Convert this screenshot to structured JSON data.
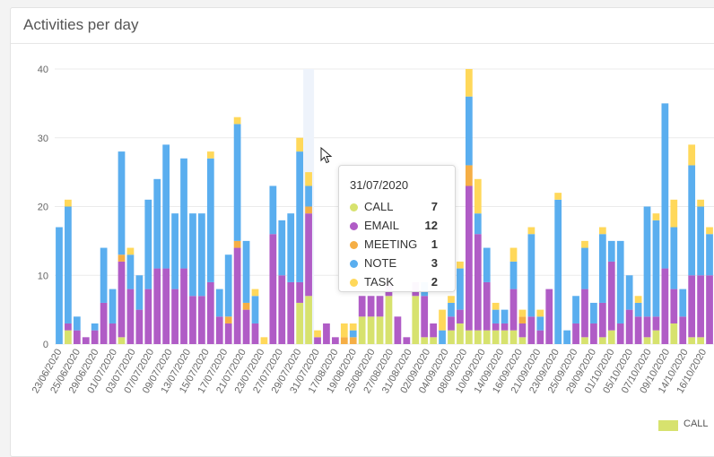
{
  "card": {
    "title": "Activities per day"
  },
  "colors": {
    "CALL": "#d7e26e",
    "EMAIL": "#b05cc6",
    "MEETING": "#f5ae45",
    "NOTE": "#5aaeef",
    "TASK": "#ffd85a",
    "grid": "#ebebeb",
    "axis_text": "#666666"
  },
  "tooltip": {
    "date": "31/07/2020",
    "rows": [
      {
        "name": "CALL",
        "value": "7"
      },
      {
        "name": "EMAIL",
        "value": "12"
      },
      {
        "name": "MEETING",
        "value": "1"
      },
      {
        "name": "NOTE",
        "value": "3"
      },
      {
        "name": "TASK",
        "value": "2"
      }
    ]
  },
  "legend": {
    "label": "CALL"
  },
  "chart_data": {
    "type": "bar",
    "stacked": true,
    "ylim": [
      0,
      40
    ],
    "yticks": [
      0,
      10,
      20,
      30,
      40
    ],
    "grid": true,
    "legend_position": "bottom-right",
    "tick_labels": [
      "23/06/2020",
      "25/06/2020",
      "29/06/2020",
      "01/07/2020",
      "03/07/2020",
      "07/07/2020",
      "09/07/2020",
      "13/07/2020",
      "15/07/2020",
      "17/07/2020",
      "21/07/2020",
      "23/07/2020",
      "27/07/2020",
      "29/07/2020",
      "31/07/2020",
      "17/08/2020",
      "19/08/2020",
      "25/08/2020",
      "27/08/2020",
      "31/08/2020",
      "02/09/2020",
      "04/09/2020",
      "08/09/2020",
      "10/09/2020",
      "14/09/2020",
      "16/09/2020",
      "21/09/2020",
      "23/09/2020",
      "25/09/2020",
      "29/09/2020",
      "01/10/2020",
      "05/10/2020",
      "07/10/2020",
      "09/10/2020",
      "14/10/2020",
      "16/10/2020"
    ],
    "series_names": [
      "CALL",
      "EMAIL",
      "MEETING",
      "NOTE",
      "TASK"
    ],
    "bars": [
      [
        0,
        0,
        0,
        17,
        0
      ],
      [
        2,
        1,
        0,
        17,
        1
      ],
      [
        0,
        2,
        0,
        2,
        0
      ],
      [
        0,
        1,
        0,
        0,
        0
      ],
      [
        0,
        2,
        0,
        1,
        0
      ],
      [
        0,
        6,
        0,
        8,
        0
      ],
      [
        0,
        3,
        0,
        5,
        0
      ],
      [
        1,
        11,
        1,
        15,
        0
      ],
      [
        0,
        8,
        0,
        5,
        1
      ],
      [
        0,
        5,
        0,
        5,
        0
      ],
      [
        0,
        8,
        0,
        13,
        0
      ],
      [
        0,
        11,
        0,
        13,
        0
      ],
      [
        0,
        11,
        0,
        18,
        0
      ],
      [
        0,
        8,
        0,
        11,
        0
      ],
      [
        0,
        11,
        0,
        16,
        0
      ],
      [
        0,
        7,
        0,
        12,
        0
      ],
      [
        0,
        7,
        0,
        12,
        0
      ],
      [
        0,
        9,
        0,
        18,
        1
      ],
      [
        0,
        4,
        0,
        4,
        0
      ],
      [
        0,
        3,
        1,
        9,
        0
      ],
      [
        0,
        14,
        1,
        17,
        1
      ],
      [
        0,
        5,
        1,
        9,
        0
      ],
      [
        0,
        3,
        0,
        4,
        1
      ],
      [
        0,
        0,
        0,
        0,
        1
      ],
      [
        0,
        16,
        0,
        7,
        0
      ],
      [
        0,
        10,
        0,
        8,
        0
      ],
      [
        0,
        9,
        0,
        10,
        0
      ],
      [
        6,
        3,
        0,
        19,
        2
      ],
      [
        7,
        12,
        1,
        3,
        2
      ],
      [
        0,
        1,
        0,
        0,
        1
      ],
      [
        0,
        3,
        0,
        0,
        0
      ],
      [
        0,
        1,
        0,
        0,
        0
      ],
      [
        0,
        0,
        1,
        0,
        2
      ],
      [
        0,
        0,
        1,
        1,
        1
      ],
      [
        4,
        3,
        0,
        0,
        0
      ],
      [
        4,
        3,
        0,
        0,
        0
      ],
      [
        4,
        3,
        0,
        0,
        0
      ],
      [
        7,
        2,
        0,
        0,
        0
      ],
      [
        0,
        4,
        0,
        0,
        0
      ],
      [
        0,
        1,
        0,
        0,
        0
      ],
      [
        7,
        2,
        0,
        0,
        0
      ],
      [
        1,
        6,
        0,
        2,
        0
      ],
      [
        1,
        2,
        0,
        0,
        0
      ],
      [
        0,
        0,
        0,
        2,
        3
      ],
      [
        2,
        2,
        0,
        2,
        1
      ],
      [
        3,
        2,
        0,
        6,
        1
      ],
      [
        2,
        21,
        3,
        10,
        4
      ],
      [
        2,
        14,
        0,
        3,
        5
      ],
      [
        2,
        7,
        0,
        5,
        0
      ],
      [
        2,
        1,
        0,
        2,
        1
      ],
      [
        2,
        1,
        0,
        2,
        0
      ],
      [
        2,
        6,
        0,
        4,
        2
      ],
      [
        1,
        2,
        1,
        0,
        1
      ],
      [
        0,
        4,
        0,
        12,
        1
      ],
      [
        0,
        2,
        0,
        2,
        1
      ],
      [
        0,
        8,
        0,
        0,
        0
      ],
      [
        0,
        0,
        0,
        21,
        1
      ],
      [
        0,
        0,
        0,
        2,
        0
      ],
      [
        0,
        3,
        0,
        4,
        0
      ],
      [
        1,
        7,
        0,
        6,
        1
      ],
      [
        0,
        3,
        0,
        3,
        0
      ],
      [
        1,
        5,
        0,
        10,
        1
      ],
      [
        2,
        10,
        0,
        3,
        0
      ],
      [
        0,
        3,
        0,
        12,
        0
      ],
      [
        0,
        5,
        0,
        5,
        0
      ],
      [
        0,
        4,
        0,
        2,
        1
      ],
      [
        1,
        3,
        0,
        16,
        0
      ],
      [
        2,
        2,
        0,
        14,
        1
      ],
      [
        0,
        11,
        0,
        24,
        0
      ],
      [
        3,
        5,
        0,
        9,
        4
      ],
      [
        0,
        4,
        0,
        4,
        0
      ],
      [
        1,
        9,
        0,
        16,
        3
      ],
      [
        1,
        9,
        0,
        10,
        1
      ],
      [
        0,
        10,
        0,
        6,
        1
      ]
    ]
  }
}
